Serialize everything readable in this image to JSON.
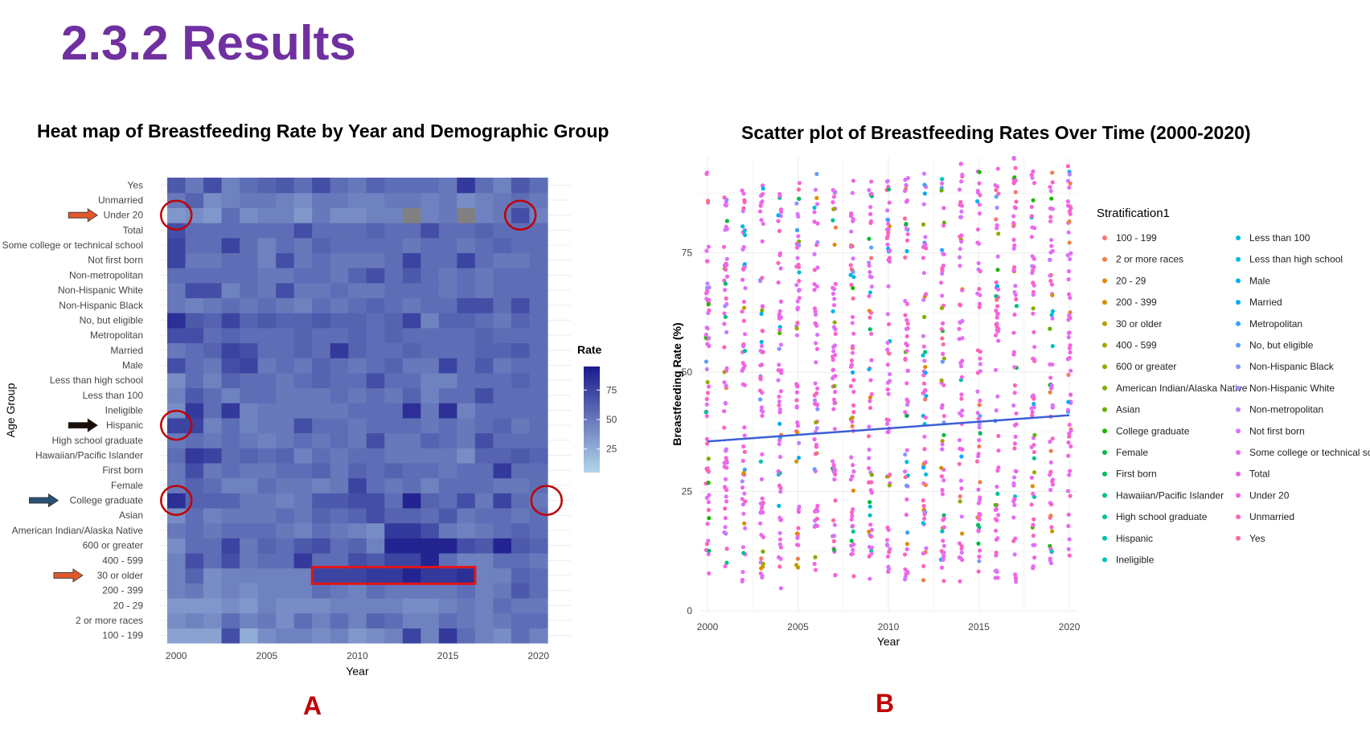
{
  "slide": {
    "title": "2.3.2 Results",
    "panel_a_letter": "A",
    "panel_b_letter": "B"
  },
  "colors": {
    "title": "#7030a0",
    "annotation_red": "#c00000",
    "arrow_orange": "#e0582c",
    "arrow_black": "#1a0e08",
    "arrow_blue": "#2a5075",
    "na_cell": "#808080",
    "trend_line": "#3b5fd6"
  },
  "chart_data": [
    {
      "type": "heatmap",
      "title": "Heat map of Breastfeeding Rate by Year and  Demographic Group",
      "xlabel": "Year",
      "ylabel": "Age Group",
      "x_ticks": [
        2000,
        2005,
        2010,
        2015,
        2020
      ],
      "x_range": [
        2000,
        2020
      ],
      "legend_title": "Rate",
      "legend_ticks": [
        25,
        50,
        75
      ],
      "color_scale": {
        "min": 5,
        "max": 95,
        "low_color": "#b3d6ea",
        "high_color": "#1a1a8c"
      },
      "categories": [
        "100 - 199",
        "2 or more races",
        "20 - 29",
        "200 - 399",
        "30 or older",
        "400 - 599",
        "600 or greater",
        "American Indian/Alaska Native",
        "Asian",
        "College graduate",
        "Female",
        "First born",
        "Hawaiian/Pacific Islander",
        "High school graduate",
        "Hispanic",
        "Ineligible",
        "Less than 100",
        "Less than high school",
        "Male",
        "Married",
        "Metropolitan",
        "No, but eligible",
        "Non-Hispanic Black",
        "Non-Hispanic White",
        "Non-metropolitan",
        "Not first born",
        "Some college or technical school",
        "Total",
        "Under 20",
        "Unmarried",
        "Yes"
      ],
      "years": [
        2000,
        2001,
        2002,
        2003,
        2004,
        2005,
        2006,
        2007,
        2008,
        2009,
        2010,
        2011,
        2012,
        2013,
        2014,
        2015,
        2016,
        2017,
        2018,
        2019,
        2020
      ],
      "values": [
        [
          30,
          30,
          30,
          70,
          25,
          40,
          45,
          45,
          40,
          45,
          35,
          40,
          45,
          75,
          45,
          80,
          55,
          45,
          40,
          55,
          45
        ],
        [
          40,
          45,
          40,
          55,
          45,
          50,
          40,
          55,
          45,
          55,
          45,
          60,
          55,
          45,
          45,
          55,
          50,
          45,
          50,
          55,
          55
        ],
        [
          35,
          35,
          35,
          40,
          35,
          45,
          40,
          40,
          40,
          45,
          45,
          45,
          45,
          40,
          40,
          45,
          50,
          45,
          55,
          50,
          50
        ],
        [
          45,
          50,
          40,
          45,
          40,
          45,
          45,
          45,
          55,
          50,
          45,
          55,
          50,
          50,
          50,
          50,
          55,
          45,
          50,
          65,
          55
        ],
        [
          45,
          60,
          40,
          45,
          45,
          45,
          45,
          45,
          75,
          75,
          75,
          80,
          80,
          90,
          80,
          80,
          85,
          45,
          45,
          60,
          55
        ],
        [
          45,
          70,
          55,
          70,
          50,
          55,
          55,
          80,
          55,
          55,
          70,
          65,
          75,
          75,
          90,
          55,
          45,
          45,
          55,
          55,
          50
        ],
        [
          40,
          55,
          55,
          75,
          50,
          60,
          55,
          65,
          70,
          55,
          60,
          45,
          90,
          90,
          90,
          90,
          70,
          65,
          90,
          65,
          60
        ],
        [
          50,
          55,
          50,
          55,
          55,
          55,
          50,
          45,
          55,
          50,
          45,
          40,
          80,
          80,
          70,
          50,
          45,
          50,
          55,
          60,
          55
        ],
        [
          40,
          55,
          45,
          50,
          50,
          50,
          55,
          50,
          60,
          55,
          60,
          70,
          60,
          60,
          55,
          65,
          50,
          55,
          55,
          50,
          55
        ],
        [
          85,
          60,
          60,
          60,
          50,
          50,
          45,
          50,
          65,
          65,
          70,
          70,
          55,
          90,
          60,
          55,
          70,
          50,
          75,
          55,
          50
        ],
        [
          50,
          60,
          55,
          45,
          45,
          55,
          50,
          50,
          45,
          50,
          75,
          55,
          50,
          55,
          45,
          55,
          55,
          55,
          50,
          50,
          55
        ],
        [
          50,
          70,
          50,
          55,
          50,
          50,
          55,
          55,
          60,
          50,
          60,
          55,
          60,
          55,
          55,
          50,
          55,
          55,
          80,
          55,
          55
        ],
        [
          55,
          80,
          75,
          55,
          60,
          55,
          60,
          45,
          55,
          50,
          55,
          55,
          50,
          50,
          50,
          50,
          40,
          60,
          60,
          65,
          60
        ],
        [
          50,
          55,
          50,
          55,
          50,
          45,
          50,
          55,
          50,
          55,
          50,
          70,
          50,
          50,
          60,
          55,
          50,
          70,
          55,
          55,
          55
        ],
        [
          75,
          75,
          45,
          55,
          45,
          50,
          50,
          70,
          55,
          55,
          50,
          55,
          55,
          55,
          50,
          55,
          50,
          55,
          60,
          50,
          55
        ],
        [
          40,
          80,
          55,
          80,
          45,
          50,
          50,
          50,
          50,
          50,
          55,
          55,
          55,
          85,
          50,
          85,
          45,
          55,
          55,
          55,
          55
        ],
        [
          45,
          65,
          55,
          45,
          55,
          55,
          50,
          50,
          50,
          55,
          50,
          55,
          50,
          60,
          45,
          55,
          55,
          70,
          55,
          55,
          55
        ],
        [
          40,
          55,
          45,
          60,
          55,
          55,
          50,
          55,
          60,
          55,
          55,
          70,
          55,
          55,
          45,
          45,
          55,
          55,
          55,
          60,
          55
        ],
        [
          70,
          55,
          50,
          70,
          75,
          50,
          55,
          50,
          60,
          55,
          50,
          55,
          60,
          50,
          50,
          75,
          55,
          65,
          50,
          55,
          55
        ],
        [
          50,
          55,
          60,
          75,
          70,
          55,
          55,
          60,
          55,
          80,
          60,
          55,
          55,
          60,
          55,
          55,
          55,
          60,
          60,
          65,
          55
        ],
        [
          70,
          70,
          55,
          60,
          55,
          55,
          55,
          60,
          55,
          55,
          60,
          55,
          60,
          55,
          55,
          55,
          55,
          60,
          55,
          55,
          55
        ],
        [
          85,
          65,
          60,
          75,
          60,
          65,
          60,
          60,
          65,
          60,
          60,
          55,
          60,
          75,
          45,
          60,
          60,
          55,
          50,
          60,
          55
        ],
        [
          50,
          45,
          50,
          55,
          50,
          55,
          50,
          45,
          55,
          50,
          55,
          60,
          55,
          50,
          55,
          55,
          70,
          70,
          55,
          70,
          55
        ],
        [
          50,
          70,
          70,
          45,
          55,
          50,
          70,
          50,
          50,
          55,
          50,
          50,
          55,
          55,
          55,
          50,
          55,
          50,
          55,
          55,
          55
        ],
        [
          55,
          55,
          55,
          55,
          55,
          50,
          50,
          55,
          55,
          50,
          60,
          70,
          55,
          65,
          55,
          50,
          55,
          50,
          55,
          55,
          55
        ],
        [
          75,
          50,
          50,
          55,
          55,
          45,
          70,
          50,
          55,
          50,
          50,
          50,
          55,
          75,
          55,
          55,
          75,
          55,
          50,
          50,
          55
        ],
        [
          75,
          55,
          55,
          75,
          55,
          45,
          55,
          50,
          60,
          55,
          55,
          55,
          55,
          50,
          55,
          55,
          50,
          55,
          60,
          55,
          55
        ],
        [
          70,
          55,
          55,
          55,
          55,
          55,
          55,
          70,
          55,
          55,
          55,
          60,
          55,
          55,
          70,
          55,
          55,
          60,
          55,
          55,
          55
        ],
        [
          35,
          40,
          35,
          55,
          40,
          45,
          45,
          35,
          50,
          40,
          40,
          45,
          45,
          null,
          45,
          50,
          null,
          45,
          50,
          70,
          45
        ],
        [
          50,
          60,
          40,
          45,
          50,
          50,
          45,
          40,
          50,
          50,
          45,
          45,
          50,
          50,
          45,
          50,
          40,
          45,
          50,
          55,
          50
        ],
        [
          65,
          50,
          70,
          45,
          55,
          60,
          65,
          55,
          70,
          55,
          50,
          60,
          55,
          55,
          55,
          50,
          80,
          55,
          45,
          65,
          55
        ]
      ],
      "annotations": {
        "arrows": [
          {
            "label": "Under 20",
            "color": "orange"
          },
          {
            "label": "Hispanic",
            "color": "black"
          },
          {
            "label": "College graduate",
            "color": "blue"
          },
          {
            "label": "30 or older",
            "color": "orange"
          }
        ],
        "circles": [
          {
            "row": "Under 20",
            "year": 2000
          },
          {
            "row": "Under 20",
            "year": 2019
          },
          {
            "row": "Hispanic",
            "year": 2000
          },
          {
            "row": "College graduate",
            "year": 2000
          },
          {
            "row": "College graduate",
            "year": 2020
          }
        ],
        "highlight_box": {
          "row": "30 or older",
          "year_start": 2008,
          "year_end": 2016
        }
      }
    },
    {
      "type": "scatter",
      "title": "Scatter plot of Breastfeeding Rates Over Time (2000-2020)",
      "xlabel": "Year",
      "ylabel": "Breastfeeding Rate (%)",
      "xlim": [
        1999.6,
        2020.4
      ],
      "ylim": [
        0,
        95
      ],
      "x_ticks": [
        2000,
        2005,
        2010,
        2015,
        2020
      ],
      "y_ticks": [
        0,
        25,
        50,
        75
      ],
      "points_per_year": [
        {
          "x": 2000,
          "min": 4,
          "max": 94
        },
        {
          "x": 2001,
          "min": 8,
          "max": 88
        },
        {
          "x": 2002,
          "min": 6,
          "max": 89
        },
        {
          "x": 2003,
          "min": 6,
          "max": 91
        },
        {
          "x": 2004,
          "min": 4,
          "max": 90
        },
        {
          "x": 2005,
          "min": 6,
          "max": 91
        },
        {
          "x": 2006,
          "min": 6,
          "max": 92
        },
        {
          "x": 2007,
          "min": 6,
          "max": 90
        },
        {
          "x": 2008,
          "min": 7,
          "max": 91
        },
        {
          "x": 2009,
          "min": 6,
          "max": 91
        },
        {
          "x": 2010,
          "min": 6,
          "max": 92
        },
        {
          "x": 2011,
          "min": 6,
          "max": 93
        },
        {
          "x": 2012,
          "min": 4,
          "max": 94
        },
        {
          "x": 2013,
          "min": 6,
          "max": 94
        },
        {
          "x": 2014,
          "min": 6,
          "max": 94
        },
        {
          "x": 2015,
          "min": 6,
          "max": 94
        },
        {
          "x": 2016,
          "min": 6,
          "max": 95
        },
        {
          "x": 2017,
          "min": 6,
          "max": 95
        },
        {
          "x": 2018,
          "min": 6,
          "max": 95
        },
        {
          "x": 2019,
          "min": 8,
          "max": 95
        },
        {
          "x": 2020,
          "min": 10,
          "max": 95
        }
      ],
      "trend_line": {
        "x": [
          2000,
          2020
        ],
        "y": [
          35.5,
          41
        ]
      },
      "legend_title": "Stratification1",
      "series": [
        {
          "name": "100 - 199",
          "color": "#f8766d"
        },
        {
          "name": "2 or more races",
          "color": "#ef7f47"
        },
        {
          "name": "20 - 29",
          "color": "#e38900"
        },
        {
          "name": "200 - 399",
          "color": "#d39200"
        },
        {
          "name": "30 or older",
          "color": "#c09b00"
        },
        {
          "name": "400 - 599",
          "color": "#a3a500"
        },
        {
          "name": "600 or greater",
          "color": "#93aa00"
        },
        {
          "name": "American Indian/Alaska Native",
          "color": "#7cae00"
        },
        {
          "name": "Asian",
          "color": "#5eb300"
        },
        {
          "name": "College graduate",
          "color": "#1eb600"
        },
        {
          "name": "Female",
          "color": "#00ba38"
        },
        {
          "name": "First born",
          "color": "#00bd5c"
        },
        {
          "name": "Hawaiian/Pacific Islander",
          "color": "#00bf7d"
        },
        {
          "name": "High school graduate",
          "color": "#00c097"
        },
        {
          "name": "Hispanic",
          "color": "#00c0af"
        },
        {
          "name": "Ineligible",
          "color": "#00bfc4"
        },
        {
          "name": "Less than 100",
          "color": "#00bcd8"
        },
        {
          "name": "Less than high school",
          "color": "#00b6eb"
        },
        {
          "name": "Male",
          "color": "#00b0f6"
        },
        {
          "name": "Married",
          "color": "#00a9ff"
        },
        {
          "name": "Metropolitan",
          "color": "#35a2ff"
        },
        {
          "name": "No, but eligible",
          "color": "#619cff"
        },
        {
          "name": "Non-Hispanic Black",
          "color": "#8b93ff"
        },
        {
          "name": "Non-Hispanic White",
          "color": "#a58aff"
        },
        {
          "name": "Non-metropolitan",
          "color": "#b983ff"
        },
        {
          "name": "Not first born",
          "color": "#db72fb"
        },
        {
          "name": "Some college or technical school",
          "color": "#e76bf3"
        },
        {
          "name": "Total",
          "color": "#f064e4"
        },
        {
          "name": "Under 20",
          "color": "#f763e0"
        },
        {
          "name": "Unmarried",
          "color": "#ff62bc"
        },
        {
          "name": "Yes",
          "color": "#ff6a98"
        }
      ]
    }
  ]
}
